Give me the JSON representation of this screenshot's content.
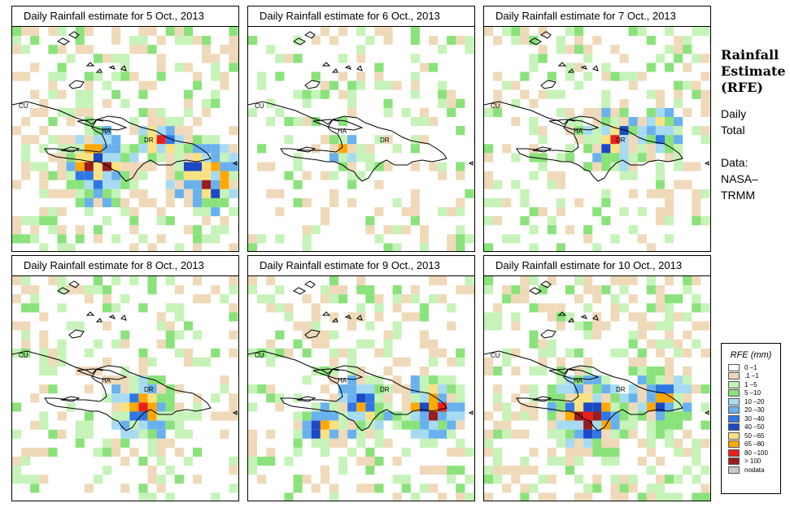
{
  "panels": [
    {
      "title": "Daily Rainfall estimate for  5 Oct., 2013",
      "intensity": "high"
    },
    {
      "title": "Daily Rainfall estimate for  6 Oct., 2013",
      "intensity": "low"
    },
    {
      "title": "Daily Rainfall estimate for  7 Oct., 2013",
      "intensity": "moderate"
    },
    {
      "title": "Daily Rainfall estimate for  8 Oct., 2013",
      "intensity": "moderate"
    },
    {
      "title": "Daily Rainfall estimate for  9 Oct., 2013",
      "intensity": "moderate"
    },
    {
      "title": "Daily Rainfall estimate for  10 Oct., 2013",
      "intensity": "high"
    }
  ],
  "map_labels": {
    "cuba": "CU",
    "haiti": "HA",
    "dominican_republic": "DR"
  },
  "sidebar": {
    "title_line1": "Rainfall",
    "title_line2": "Estimate",
    "title_line3": "(RFE)",
    "period_line1": "Daily",
    "period_line2": "Total",
    "source_line1": "Data:",
    "source_line2": "NASA–",
    "source_line3": "TRMM"
  },
  "legend": {
    "title": "RFE (mm)",
    "items": [
      {
        "label": "0 –1",
        "color": "#ffffff"
      },
      {
        "label": ".1 –1",
        "color": "#efd9b9"
      },
      {
        "label": "1 –5",
        "color": "#c5f3b8"
      },
      {
        "label": "5 –10",
        "color": "#8ae27a"
      },
      {
        "label": "10 –20",
        "color": "#a6dbf2"
      },
      {
        "label": "20 –30",
        "color": "#68b1ee"
      },
      {
        "label": "30 –40",
        "color": "#2f77e6"
      },
      {
        "label": "40 –50",
        "color": "#1c49c3"
      },
      {
        "label": "50 –65",
        "color": "#fbe281"
      },
      {
        "label": "65 –80",
        "color": "#ffa800"
      },
      {
        "label": "80 –100",
        "color": "#e8211c"
      },
      {
        "label": "> 100",
        "color": "#9b1c1c"
      },
      {
        "label": "nodata",
        "color": "#c8c8c8"
      }
    ]
  }
}
